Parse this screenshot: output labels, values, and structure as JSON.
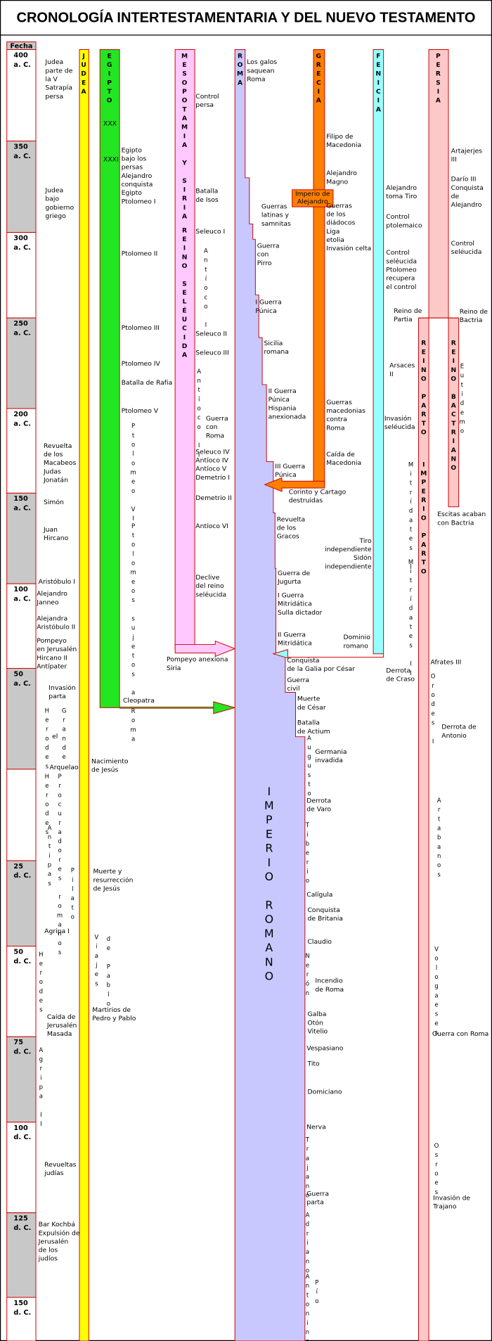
{
  "title": "CRONOLOGÍA INTERTESTAMENTARIA Y DEL NUEVO TESTAMENTO",
  "date_header": "Fecha",
  "dates": [
    {
      "year": "400",
      "era": "a. C."
    },
    {
      "year": "350",
      "era": "a. C."
    },
    {
      "year": "300",
      "era": "a. C."
    },
    {
      "year": "250",
      "era": "a. C."
    },
    {
      "year": "200",
      "era": "a. C."
    },
    {
      "year": "150",
      "era": "a. C."
    },
    {
      "year": "100",
      "era": "a. C."
    },
    {
      "year": "50",
      "era": "a. C."
    },
    {
      "year": "25",
      "era": "d. C."
    },
    {
      "year": "50",
      "era": "d. C."
    },
    {
      "year": "75",
      "era": "d. C."
    },
    {
      "year": "100",
      "era": "d. C."
    },
    {
      "year": "125",
      "era": "d. C."
    },
    {
      "year": "150",
      "era": "d. C."
    }
  ],
  "columns": [
    "JUDEA",
    "EGIPTO",
    "MESOPOTAMIA Y SIRIA",
    "REINO SELÉUCIDA",
    "ROMA",
    "GRECIA",
    "FENICIA",
    "PERSIA",
    "REINO PARTO",
    "IMPERIO PARTO",
    "REINO BACTRIANO",
    "IMPERIO ROMANO"
  ],
  "dynasties": [
    "XXX",
    "XXXI"
  ],
  "empire_box": [
    "Imperio de",
    "Alejandro"
  ],
  "events": [
    [
      "Judea",
      "parte de",
      "la V",
      "Satrapía",
      "persa"
    ],
    [
      "Judea",
      "bajo",
      "gobierno",
      "griego"
    ],
    [
      "Revuelta",
      "de los",
      "Macabeos",
      "Judas",
      "Jonatán"
    ],
    [
      "Simón"
    ],
    [
      "Juan",
      "Hircano"
    ],
    [
      "Aristóbulo I"
    ],
    [
      "Alejandro",
      "Janneo"
    ],
    [
      "Alejandra",
      "Aristóbulo II"
    ],
    [
      "Pompeyo",
      "en Jerusalén",
      "Hircano II",
      "Antípater"
    ],
    [
      "Invasión",
      "parta"
    ],
    [
      "el"
    ],
    [
      "Arquelao"
    ],
    [
      "Agripa I"
    ],
    [
      "Caída de",
      "Jerusalén",
      "Masada"
    ],
    [
      "Revueltas",
      "judías"
    ],
    [
      "Bar Kochbá",
      "Expulsión de",
      "Jerusalén",
      "de los",
      "judíos"
    ],
    [
      "Nacimiento",
      "de Jesús"
    ],
    [
      "Muerte y",
      "resurrección",
      "de Jesús"
    ],
    [
      "Martirios de",
      "Pedro y Pablo"
    ],
    [
      "Egipto",
      "bajo los",
      "persas",
      "Alejandro",
      "conquista",
      "Egipto",
      "Ptolomeo I"
    ],
    [
      "Ptolomeo II"
    ],
    [
      "Ptolomeo III"
    ],
    [
      "Ptolomeo IV"
    ],
    [
      "Batalla de Rafia"
    ],
    [
      "Ptolomeo V"
    ],
    [
      "Cleopatra"
    ],
    [
      "Pompeyo anexiona",
      "Siria"
    ],
    [
      "Control",
      "persa"
    ],
    [
      "Batalla",
      "de Isos"
    ],
    [
      "Seleuco I"
    ],
    [
      "Seleuco II"
    ],
    [
      "Seleuco III"
    ],
    [
      "Guerra",
      "con",
      "Roma"
    ],
    [
      "Seleuco IV",
      "Antíoco IV",
      "Antíoco V",
      "Demetrio I"
    ],
    [
      "Demetrio II"
    ],
    [
      "Antíoco VI"
    ],
    [
      "Declive",
      "del reino",
      "seléucida"
    ],
    [
      "Los galos",
      "saquean",
      "Roma"
    ],
    [
      "Guerras",
      "latinas y",
      "samnitas"
    ],
    [
      "Guerra",
      "con",
      "Pirro"
    ],
    [
      "I Guerra",
      "Púnica"
    ],
    [
      "Sicilia",
      "romana"
    ],
    [
      "II Guerra",
      "Púnica",
      "Hispania",
      "anexionada"
    ],
    [
      "III Guerra",
      "Púnica"
    ],
    [
      "Corinto y Cartago",
      "destruidas"
    ],
    [
      "Revuelta",
      "de los",
      "Gracos"
    ],
    [
      "Guerra de",
      "Jugurta"
    ],
    [
      "I Guerra",
      "Mitridática",
      "Sulla dictador"
    ],
    [
      "II Guerra",
      "Mitridática"
    ],
    [
      "Conquista",
      "de la Galia por César"
    ],
    [
      "Guerra",
      "civil"
    ],
    [
      "Muerte",
      "de César"
    ],
    [
      "Batalla",
      "de Actium"
    ],
    [
      "Germania",
      "invadida"
    ],
    [
      "Derrota",
      "de Varo"
    ],
    [
      "Calígula"
    ],
    [
      "Conquista",
      "de Britania"
    ],
    [
      "Claudio"
    ],
    [
      "Incendio",
      "de Roma"
    ],
    [
      "Galba",
      "Otón",
      "Vitelio"
    ],
    [
      "Vespasiano"
    ],
    [
      "Tito"
    ],
    [
      "Domiciano"
    ],
    [
      "Nerva"
    ],
    [
      "Guerra",
      "parta"
    ],
    [
      "Filipo de",
      "Macedonia"
    ],
    [
      "Alejandro",
      "Magno"
    ],
    [
      "Guerras",
      "de los",
      "diádocos",
      "Liga",
      "etolia",
      "Invasión celta"
    ],
    [
      "Guerras",
      "macedonias",
      "contra",
      "Roma"
    ],
    [
      "Caída de",
      "Macedonia"
    ],
    [
      "Alejandro",
      "toma Tiro"
    ],
    [
      "Control",
      "ptolemaico"
    ],
    [
      "Control",
      "seléucida",
      "Ptolomeo",
      "recupera",
      "el control"
    ],
    [
      "Reino de",
      "Partia"
    ],
    [
      "Arsaces",
      "II"
    ],
    [
      "Invasión",
      "seléucida"
    ],
    [
      "Tiro",
      "independiente",
      "Sidón",
      "independiente"
    ],
    [
      "Dominio",
      "romano"
    ],
    [
      "Derrota",
      "de Craso"
    ],
    [
      "Artajerjes",
      "III"
    ],
    [
      "Darío III",
      "Conquista",
      "de",
      "Alejandro"
    ],
    [
      "Control",
      "seléucida"
    ],
    [
      "Reino de",
      "Bactria"
    ],
    [
      "Escitas acaban",
      "con Bactria"
    ],
    [
      "Afrates III"
    ],
    [
      "Derrota de",
      "Antonio"
    ],
    [
      "Guerra con Roma"
    ],
    [
      "Invasión de",
      "Trajano"
    ]
  ],
  "vertical_labels": [
    "Herodes",
    "Grande",
    "Herodes",
    "Procuradores romanos",
    "Antipas",
    "Pilato",
    "Herodes",
    "Agripa II",
    "Viajes",
    "de Pablo",
    "Ptolomeo VI",
    "Ptolomeos sujetos a Roma",
    "Antíoco I",
    "Antíoco II",
    "Augusto",
    "Tiberio",
    "Nerón",
    "Trajano",
    "Adriano",
    "Antonino",
    "Pío",
    "Mitrídates I",
    "Mitrídates II",
    "Eutidemo",
    "Orodes I",
    "Artabanos",
    "Vologaeses",
    "Osroes"
  ]
}
